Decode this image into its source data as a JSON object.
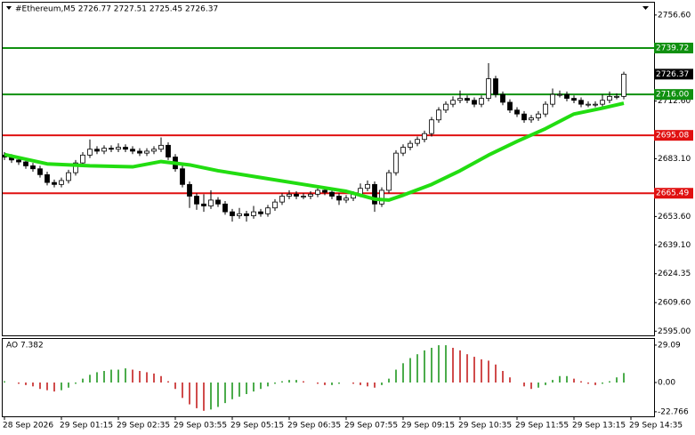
{
  "chart_data": {
    "type": "candlestick",
    "header": "#Ethereum,M5  2726.77 2727.51 2725.45 2726.37",
    "ylim": [
      2592.4,
      2762.9
    ],
    "yticks": [
      {
        "value": 2756.6,
        "label": "2756.60"
      },
      {
        "value": 2712.6,
        "label": "2712.60"
      },
      {
        "value": 2683.1,
        "label": "2683.10"
      },
      {
        "value": 2653.6,
        "label": "2653.60"
      },
      {
        "value": 2639.1,
        "label": "2639.10"
      },
      {
        "value": 2624.35,
        "label": "2624.35"
      },
      {
        "value": 2609.6,
        "label": "2609.60"
      },
      {
        "value": 2595.0,
        "label": "2595.00"
      }
    ],
    "x_labels": [
      "28 Sep 2026",
      "29 Sep 01:15",
      "29 Sep 02:35",
      "29 Sep 03:55",
      "29 Sep 05:15",
      "29 Sep 06:35",
      "29 Sep 07:55",
      "29 Sep 09:15",
      "29 Sep 10:35",
      "29 Sep 11:55",
      "29 Sep 13:15",
      "29 Sep 14:35"
    ],
    "candles": [
      [
        2685,
        2686.5,
        2682.5,
        2684
      ],
      [
        2684,
        2685.5,
        2681,
        2682.5
      ],
      [
        2682.5,
        2684,
        2680,
        2681.5
      ],
      [
        2681.5,
        2683,
        2678,
        2679.5
      ],
      [
        2679.5,
        2681,
        2676.5,
        2678
      ],
      [
        2678,
        2679.5,
        2673.5,
        2675
      ],
      [
        2675,
        2676.5,
        2669.5,
        2671
      ],
      [
        2671,
        2672.5,
        2668.5,
        2670
      ],
      [
        2670,
        2673.5,
        2668.5,
        2672
      ],
      [
        2672,
        2677.5,
        2670.5,
        2676
      ],
      [
        2676,
        2682.5,
        2674.5,
        2681
      ],
      [
        2681,
        2686.5,
        2679.5,
        2685
      ],
      [
        2685,
        2693,
        2683.5,
        2688
      ],
      [
        2688,
        2689.5,
        2685.5,
        2687
      ],
      [
        2687,
        2690,
        2685.5,
        2688.5
      ],
      [
        2688.5,
        2690,
        2686.5,
        2688
      ],
      [
        2688,
        2691,
        2686.5,
        2689
      ],
      [
        2689,
        2690.5,
        2686.5,
        2688
      ],
      [
        2688,
        2689.5,
        2685.5,
        2687
      ],
      [
        2687,
        2688.5,
        2684.5,
        2686
      ],
      [
        2686,
        2688.5,
        2684.5,
        2687
      ],
      [
        2687,
        2689.5,
        2685.5,
        2688
      ],
      [
        2688,
        2694,
        2686.5,
        2690
      ],
      [
        2690,
        2691.5,
        2682.5,
        2684
      ],
      [
        2684,
        2685.5,
        2676.5,
        2678
      ],
      [
        2678,
        2679.5,
        2668.5,
        2670
      ],
      [
        2670,
        2671.5,
        2658,
        2664
      ],
      [
        2664,
        2665.5,
        2657,
        2660
      ],
      [
        2660,
        2665,
        2656,
        2659
      ],
      [
        2659,
        2667,
        2657.5,
        2662
      ],
      [
        2662,
        2663.5,
        2658.5,
        2660
      ],
      [
        2660,
        2661.5,
        2654.5,
        2656
      ],
      [
        2656,
        2657.5,
        2651,
        2654
      ],
      [
        2654,
        2658,
        2652.5,
        2655
      ],
      [
        2655,
        2656.5,
        2651,
        2654
      ],
      [
        2654,
        2659,
        2652.5,
        2656
      ],
      [
        2656,
        2657.5,
        2653.5,
        2655
      ],
      [
        2655,
        2659.5,
        2653.5,
        2658
      ],
      [
        2658,
        2662.5,
        2656.5,
        2661
      ],
      [
        2661,
        2665.5,
        2659.5,
        2664
      ],
      [
        2664,
        2667,
        2662.5,
        2665
      ],
      [
        2665,
        2666.5,
        2662.5,
        2664
      ],
      [
        2664,
        2665.5,
        2662.5,
        2664
      ],
      [
        2664,
        2666.5,
        2662.5,
        2665
      ],
      [
        2665,
        2669.5,
        2663.5,
        2667
      ],
      [
        2667,
        2668.5,
        2664.5,
        2666
      ],
      [
        2666,
        2667.5,
        2662.5,
        2664
      ],
      [
        2664,
        2665.5,
        2659.5,
        2662
      ],
      [
        2662,
        2664.5,
        2660.5,
        2663
      ],
      [
        2663,
        2666.5,
        2661.5,
        2665
      ],
      [
        2665,
        2670.5,
        2663.5,
        2668
      ],
      [
        2668,
        2672,
        2666.5,
        2670
      ],
      [
        2670,
        2671.5,
        2656,
        2660
      ],
      [
        2660,
        2668.5,
        2658.5,
        2667
      ],
      [
        2667,
        2677.5,
        2665.5,
        2676
      ],
      [
        2676,
        2687.5,
        2674.5,
        2686
      ],
      [
        2686,
        2690.5,
        2684.5,
        2689
      ],
      [
        2689,
        2692.5,
        2687.5,
        2691
      ],
      [
        2691,
        2694.5,
        2689.5,
        2693
      ],
      [
        2693,
        2697.5,
        2691.5,
        2696
      ],
      [
        2696,
        2704.5,
        2694.5,
        2703
      ],
      [
        2703,
        2709.5,
        2701.5,
        2708
      ],
      [
        2708,
        2712.5,
        2706.5,
        2711
      ],
      [
        2711,
        2715,
        2709.5,
        2713
      ],
      [
        2713,
        2718,
        2711.5,
        2714
      ],
      [
        2714,
        2715.5,
        2711.5,
        2713
      ],
      [
        2713,
        2714.5,
        2709.5,
        2711
      ],
      [
        2711,
        2715.5,
        2709.5,
        2714
      ],
      [
        2714,
        2732,
        2712.5,
        2724
      ],
      [
        2724,
        2725.5,
        2714.5,
        2716
      ],
      [
        2716,
        2717.5,
        2710.5,
        2712
      ],
      [
        2712,
        2713.5,
        2706.5,
        2708
      ],
      [
        2708,
        2709.5,
        2704.5,
        2706
      ],
      [
        2706,
        2707.5,
        2701.5,
        2703
      ],
      [
        2703,
        2705.5,
        2701.5,
        2704
      ],
      [
        2704,
        2707.5,
        2702.5,
        2706
      ],
      [
        2706,
        2712.5,
        2704.5,
        2711
      ],
      [
        2711,
        2719,
        2709.5,
        2716
      ],
      [
        2716,
        2718,
        2714.5,
        2716
      ],
      [
        2716,
        2717.5,
        2712.5,
        2714
      ],
      [
        2714,
        2715.5,
        2711.5,
        2713
      ],
      [
        2713,
        2714.5,
        2709.5,
        2711
      ],
      [
        2711,
        2712.5,
        2709.5,
        2711
      ],
      [
        2711,
        2712.5,
        2709.5,
        2711
      ],
      [
        2711,
        2716,
        2709.5,
        2713
      ],
      [
        2713,
        2717.5,
        2711.5,
        2715
      ],
      [
        2715,
        2716.5,
        2713.5,
        2715
      ],
      [
        2715,
        2727.6,
        2713.5,
        2726.37
      ]
    ],
    "ma": {
      "color": "#22dd11",
      "x": [
        0,
        6,
        12,
        18,
        22,
        26,
        30,
        36,
        42,
        48,
        52,
        54,
        56,
        60,
        64,
        68,
        72,
        76,
        80,
        84,
        87
      ],
      "values": [
        2685.3,
        2680.5,
        2679.5,
        2679,
        2681.7,
        2680,
        2677,
        2673.5,
        2670,
        2666.5,
        2662.5,
        2662,
        2664.5,
        2670,
        2677,
        2685,
        2692,
        2698.5,
        2706,
        2709,
        2711.5
      ]
    },
    "levels": [
      {
        "value": 2739.72,
        "label": "2739.72",
        "color": "#109010"
      },
      {
        "value": 2716.0,
        "label": "2716.00",
        "color": "#109010"
      },
      {
        "value": 2695.08,
        "label": "2695.08",
        "color": "#e01010"
      },
      {
        "value": 2665.49,
        "label": "2665.49",
        "color": "#e01010"
      }
    ],
    "current": {
      "value": 2726.37,
      "label": "2726.37"
    },
    "ao": {
      "label": "AO 7.382",
      "ylim": [
        -26.3,
        33.9
      ],
      "yticks": [
        29.09,
        {
          "value": 0,
          "label": "0.00"
        },
        -22.766
      ],
      "up_color": "#109010",
      "down_color": "#c01010",
      "values": [
        1,
        0,
        -1,
        -2,
        -3,
        -5,
        -6,
        -7,
        -6,
        -4,
        -1,
        3,
        6,
        8,
        9,
        10,
        10,
        11,
        10,
        9,
        8,
        7,
        5,
        1,
        -5,
        -12,
        -17,
        -20,
        -22,
        -21,
        -19,
        -16,
        -13,
        -11,
        -9,
        -7,
        -5,
        -3,
        -1,
        1,
        2,
        2,
        1,
        0,
        -1,
        -2,
        -2,
        -1,
        0,
        -1,
        -2,
        -3,
        -4,
        -2,
        3,
        10,
        15,
        19,
        22,
        25,
        27,
        29,
        29,
        27,
        25,
        22,
        20,
        18,
        17,
        14,
        9,
        4,
        0,
        -3,
        -5,
        -4,
        -2,
        2,
        5,
        5,
        3,
        1,
        -1,
        -2,
        -1,
        1,
        4,
        7.382
      ]
    }
  }
}
